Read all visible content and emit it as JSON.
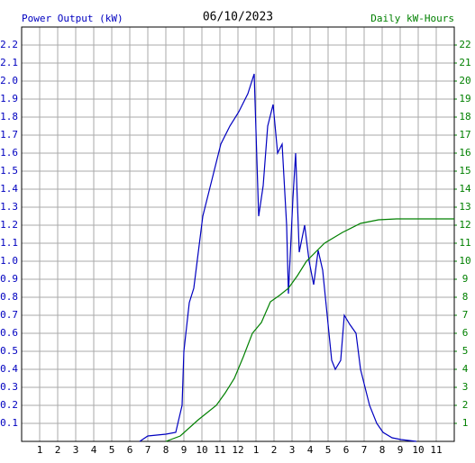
{
  "chart_data": {
    "type": "line",
    "title": "06/10/2023",
    "y_label": "Power Output (kW)",
    "y2_label": "Daily kW-Hours",
    "xlim": [
      0,
      24
    ],
    "ylim": [
      0,
      2.3
    ],
    "y2lim": [
      0,
      23
    ],
    "grid": true,
    "xticks": [
      1,
      2,
      3,
      4,
      5,
      6,
      7,
      8,
      9,
      10,
      11,
      12,
      {
        "value": 13,
        "label": "1"
      },
      {
        "value": 14,
        "label": "2"
      },
      {
        "value": 15,
        "label": "3"
      },
      {
        "value": 16,
        "label": "4"
      },
      {
        "value": 17,
        "label": "5"
      },
      {
        "value": 18,
        "label": "6"
      },
      {
        "value": 19,
        "label": "7"
      },
      {
        "value": 20,
        "label": "8"
      },
      {
        "value": 21,
        "label": "9"
      },
      {
        "value": 22,
        "label": "10"
      },
      {
        "value": 23,
        "label": "11"
      }
    ],
    "yticks": [
      0.1,
      0.2,
      0.3,
      0.4,
      0.5,
      0.6,
      0.7,
      0.8,
      0.9,
      {
        "value": 1,
        "label": "1.0"
      },
      1.1,
      1.2,
      1.3,
      1.4,
      1.5,
      1.6,
      1.7,
      1.8,
      1.9,
      {
        "value": 2,
        "label": "2.0"
      },
      2.1,
      2.2
    ],
    "y2ticks": [
      1,
      2,
      3,
      4,
      5,
      6,
      7,
      8,
      9,
      10,
      11,
      12,
      13,
      14,
      15,
      16,
      17,
      18,
      19,
      20,
      21,
      22
    ],
    "series": [
      {
        "name": "Power Output (kW)",
        "color": "#0000c0",
        "x": [
          6.55,
          7,
          8,
          8.55,
          8.9,
          9.0,
          9.3,
          9.55,
          9.8,
          10.05,
          10.55,
          10.8,
          11.05,
          11.55,
          12.05,
          12.55,
          12.9,
          13.15,
          13.4,
          13.65,
          13.95,
          14.2,
          14.45,
          14.7,
          14.8,
          15.05,
          15.2,
          15.4,
          15.7,
          15.95,
          16.2,
          16.45,
          16.7,
          16.95,
          17.2,
          17.4,
          17.7,
          17.9,
          18.2,
          18.55,
          18.8,
          19.05,
          19.3,
          19.7,
          20.05,
          20.55,
          21.05,
          21.9
        ],
        "values": [
          0,
          0.03,
          0.04,
          0.05,
          0.2,
          0.5,
          0.77,
          0.85,
          1.05,
          1.25,
          1.45,
          1.55,
          1.65,
          1.75,
          1.83,
          1.93,
          2.04,
          1.25,
          1.42,
          1.75,
          1.87,
          1.6,
          1.65,
          1.2,
          0.82,
          1.35,
          1.6,
          1.05,
          1.2,
          1.0,
          0.87,
          1.06,
          0.95,
          0.7,
          0.45,
          0.4,
          0.45,
          0.7,
          0.65,
          0.6,
          0.4,
          0.3,
          0.2,
          0.1,
          0.05,
          0.02,
          0.01,
          0
        ]
      },
      {
        "name": "Daily kW-Hours",
        "color": "#008000",
        "axis": "y2",
        "x": [
          8,
          8.8,
          9.8,
          10.8,
          11.3,
          11.8,
          12.3,
          12.8,
          13.3,
          13.8,
          14.3,
          14.8,
          15.3,
          15.8,
          16.8,
          17.8,
          18.8,
          19.8,
          20.8,
          24
        ],
        "values": [
          0,
          0.3,
          1.2,
          2,
          2.7,
          3.5,
          4.7,
          6,
          6.6,
          7.75,
          8.1,
          8.5,
          9.2,
          10,
          11,
          11.6,
          12.1,
          12.3,
          12.35,
          12.35
        ]
      }
    ]
  }
}
